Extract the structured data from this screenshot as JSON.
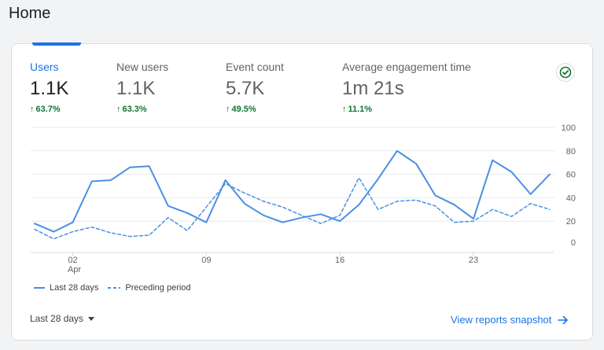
{
  "page": {
    "title": "Home"
  },
  "metrics": [
    {
      "label": "Users",
      "value": "1.1K",
      "delta": "63.7%",
      "active": true
    },
    {
      "label": "New users",
      "value": "1.1K",
      "delta": "63.3%",
      "active": false
    },
    {
      "label": "Event count",
      "value": "5.7K",
      "delta": "49.5%",
      "active": false
    },
    {
      "label": "Average engagement time",
      "value": "1m 21s",
      "delta": "11.1%",
      "active": false
    }
  ],
  "colors": {
    "accent": "#1a73e8",
    "positive": "#137333",
    "line": "#4a90e2"
  },
  "icons": {
    "status": "check-circle-icon",
    "range_caret": "caret-down-icon",
    "link_arrow": "arrow-right-icon"
  },
  "chart_data": {
    "type": "line",
    "x_tick_labels": [
      "02",
      "09",
      "16",
      "23"
    ],
    "x_tick_sublabels": [
      "Apr",
      "",
      "",
      ""
    ],
    "y_tick_labels": [
      "0",
      "20",
      "40",
      "60",
      "80",
      "100"
    ],
    "ylim": [
      0,
      100
    ],
    "grid": true,
    "legend_placement": "bottom-left",
    "series": [
      {
        "name": "Last 28 days",
        "style": "solid",
        "values": [
          18,
          11,
          19,
          54,
          55,
          66,
          67,
          33,
          27,
          19,
          55,
          35,
          25,
          19,
          23,
          26,
          20,
          34,
          56,
          80,
          69,
          42,
          34,
          22,
          72,
          62,
          43,
          60
        ]
      },
      {
        "name": "Preceding period",
        "style": "dashed",
        "values": [
          13,
          5,
          11,
          15,
          10,
          7,
          8,
          23,
          12,
          32,
          52,
          44,
          37,
          32,
          25,
          18,
          25,
          57,
          30,
          37,
          38,
          33,
          19,
          20,
          30,
          24,
          35,
          30
        ]
      }
    ]
  },
  "legend": {
    "current": "Last 28 days",
    "previous": "Preceding period"
  },
  "footer": {
    "range_label": "Last 28 days",
    "link_label": "View reports snapshot"
  }
}
